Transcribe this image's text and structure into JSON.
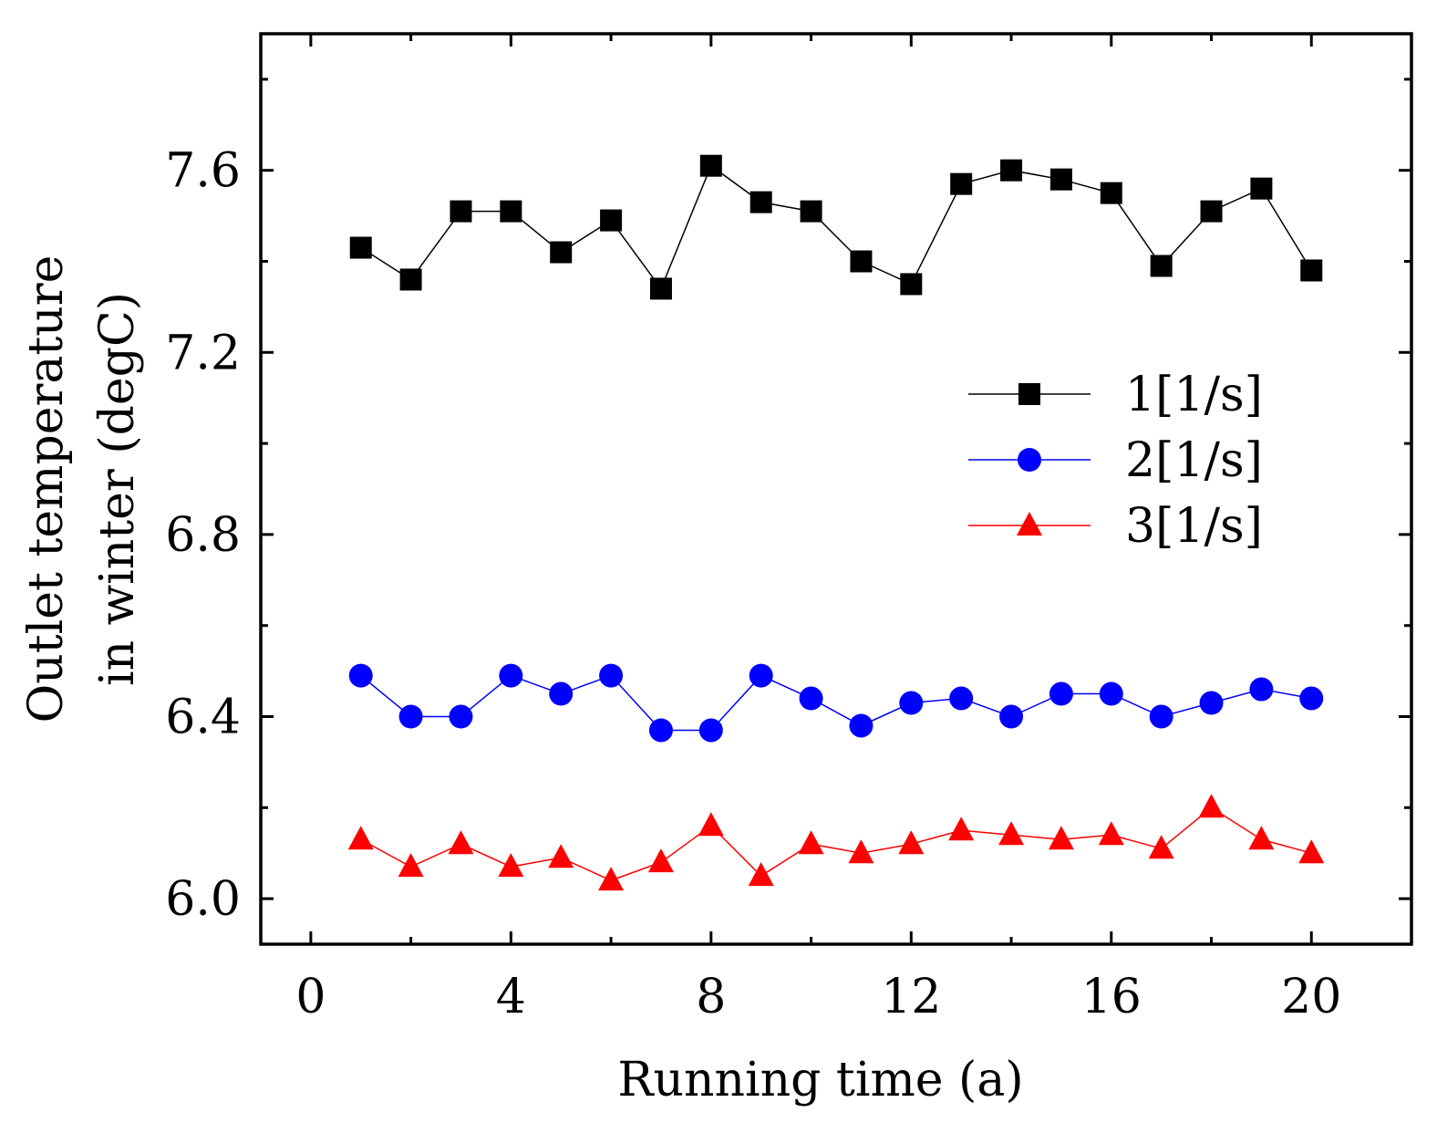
{
  "chart_data": {
    "type": "line",
    "title": "",
    "xlabel": "Running time (a)",
    "ylabel_line1": "Outlet temperature",
    "ylabel_line2": "in winter (degC)",
    "xlim": [
      -1,
      22
    ],
    "ylim": [
      5.9,
      7.9
    ],
    "x_ticks": [
      0,
      4,
      8,
      12,
      16,
      20
    ],
    "x_tick_labels": [
      "0",
      "4",
      "8",
      "12",
      "16",
      "20"
    ],
    "x_minor_ticks": [
      2,
      6,
      10,
      14,
      18
    ],
    "y_ticks": [
      6.0,
      6.4,
      6.8,
      7.2,
      7.6
    ],
    "y_tick_labels": [
      "6.0",
      "6.4",
      "6.8",
      "7.2",
      "7.6"
    ],
    "y_minor_ticks": [
      6.2,
      6.6,
      7.0,
      7.4,
      7.8
    ],
    "legend_position": "right-middle",
    "x": [
      1,
      2,
      3,
      4,
      5,
      6,
      7,
      8,
      9,
      10,
      11,
      12,
      13,
      14,
      15,
      16,
      17,
      18,
      19,
      20
    ],
    "series": [
      {
        "name": "1[1/s]",
        "marker": "square",
        "color": "#000000",
        "values": [
          7.43,
          7.36,
          7.51,
          7.51,
          7.42,
          7.49,
          7.34,
          7.61,
          7.53,
          7.51,
          7.4,
          7.35,
          7.57,
          7.6,
          7.58,
          7.55,
          7.39,
          7.51,
          7.56,
          7.38
        ]
      },
      {
        "name": "2[1/s]",
        "marker": "circle",
        "color": "#0000ff",
        "values": [
          6.49,
          6.4,
          6.4,
          6.49,
          6.45,
          6.49,
          6.37,
          6.37,
          6.49,
          6.44,
          6.38,
          6.43,
          6.44,
          6.4,
          6.45,
          6.45,
          6.4,
          6.43,
          6.46,
          6.44
        ]
      },
      {
        "name": "3[1/s]",
        "marker": "triangle",
        "color": "#ff0000",
        "values": [
          6.13,
          6.07,
          6.12,
          6.07,
          6.09,
          6.04,
          6.08,
          6.16,
          6.05,
          6.12,
          6.1,
          6.12,
          6.15,
          6.14,
          6.13,
          6.14,
          6.11,
          6.2,
          6.13,
          6.1
        ]
      }
    ]
  }
}
